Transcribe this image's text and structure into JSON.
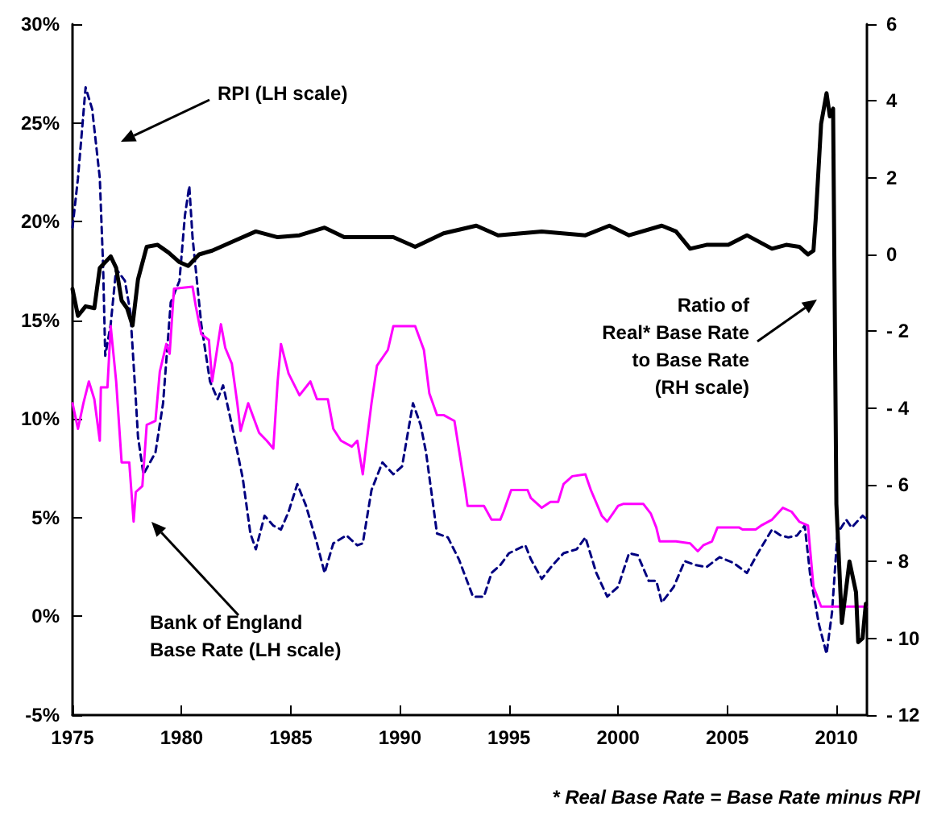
{
  "chart_data": {
    "type": "line",
    "xlim": [
      1975,
      2011.4
    ],
    "xticks": [
      1975,
      1980,
      1985,
      1990,
      1995,
      2000,
      2005,
      2010
    ],
    "ylim": [
      -5,
      30
    ],
    "yticks": [
      {
        "value": -5,
        "label": "-5%"
      },
      {
        "value": 0,
        "label": "0%"
      },
      {
        "value": 5,
        "label": "5%"
      },
      {
        "value": 10,
        "label": "10%"
      },
      {
        "value": 15,
        "label": "15%"
      },
      {
        "value": 20,
        "label": "20%"
      },
      {
        "value": 25,
        "label": "25%"
      },
      {
        "value": 30,
        "label": "30%"
      }
    ],
    "y2lim": [
      -12,
      6
    ],
    "y2ticks": [
      {
        "value": -12,
        "label": "- 12"
      },
      {
        "value": -10,
        "label": "- 10"
      },
      {
        "value": -8,
        "label": "- 8"
      },
      {
        "value": -6,
        "label": "- 6"
      },
      {
        "value": -4,
        "label": "- 4"
      },
      {
        "value": -2,
        "label": "- 2"
      },
      0,
      2,
      4,
      6
    ],
    "grid": false,
    "marker": "none",
    "series": [
      {
        "color": "#000080",
        "line_style": "dashed",
        "x": [
          1975.0,
          1975.25,
          1975.6,
          1975.9,
          1976.25,
          1976.4,
          1976.5,
          1976.75,
          1977.0,
          1977.4,
          1977.65,
          1977.9,
          1978.0,
          1978.25,
          1978.8,
          1979.15,
          1979.5,
          1979.9,
          1980.15,
          1980.35,
          1980.5,
          1980.9,
          1981.3,
          1981.65,
          1981.9,
          1982.3,
          1982.8,
          1983.15,
          1983.4,
          1983.8,
          1984.2,
          1984.55,
          1984.9,
          1985.3,
          1985.7,
          1986.2,
          1986.55,
          1986.95,
          1987.55,
          1988.05,
          1988.3,
          1988.7,
          1989.2,
          1989.7,
          1990.1,
          1990.6,
          1990.95,
          1991.2,
          1991.7,
          1992.2,
          1992.7,
          1993.35,
          1993.85,
          1994.2,
          1994.6,
          1995.0,
          1995.75,
          1996.0,
          1996.5,
          1997.0,
          1997.5,
          1998.1,
          1998.5,
          1999.0,
          1999.5,
          2000.0,
          2000.5,
          2000.9,
          2001.4,
          2001.75,
          2002.0,
          2002.55,
          2003.05,
          2003.55,
          2004.05,
          2004.65,
          2005.3,
          2005.9,
          2006.4,
          2007.05,
          2007.45,
          2007.8,
          2008.2,
          2008.55,
          2008.8,
          2009.2,
          2009.55,
          2009.8,
          2010.05,
          2010.45,
          2010.7,
          2011.2,
          2011.4
        ],
        "values": [
          19.7,
          22.2,
          26.8,
          25.7,
          22.2,
          17.8,
          13.2,
          14.8,
          17.6,
          17.0,
          15.4,
          11.0,
          9.1,
          7.2,
          8.3,
          10.8,
          15.9,
          17.0,
          20.3,
          21.8,
          19.2,
          14.8,
          11.9,
          11.0,
          11.7,
          9.7,
          7.0,
          4.2,
          3.4,
          5.1,
          4.6,
          4.4,
          5.3,
          6.7,
          5.6,
          3.7,
          2.2,
          3.7,
          4.1,
          3.6,
          3.7,
          6.4,
          7.8,
          7.2,
          7.6,
          10.8,
          9.7,
          8.3,
          4.2,
          4.0,
          2.9,
          1.0,
          1.0,
          2.2,
          2.6,
          3.2,
          3.6,
          2.9,
          1.9,
          2.6,
          3.2,
          3.4,
          4.0,
          2.2,
          1.0,
          1.5,
          3.2,
          3.1,
          1.8,
          1.8,
          0.7,
          1.5,
          2.8,
          2.6,
          2.5,
          3.0,
          2.7,
          2.2,
          3.2,
          4.4,
          4.1,
          4.0,
          4.1,
          4.6,
          2.1,
          -0.4,
          -1.9,
          0.2,
          4.2,
          4.9,
          4.5,
          5.1,
          4.9
        ]
      },
      {
        "color": "#ff00ff",
        "line_style": "solid",
        "x": [
          1975.0,
          1975.25,
          1975.5,
          1975.75,
          1976.0,
          1976.25,
          1976.3,
          1976.6,
          1976.75,
          1977.0,
          1977.25,
          1977.6,
          1977.8,
          1977.9,
          1978.2,
          1978.4,
          1978.8,
          1979.0,
          1979.3,
          1979.45,
          1979.65,
          1980.5,
          1980.65,
          1980.9,
          1981.25,
          1981.4,
          1981.8,
          1982.0,
          1982.3,
          1982.55,
          1982.7,
          1983.05,
          1983.55,
          1983.9,
          1984.2,
          1984.4,
          1984.55,
          1984.9,
          1985.4,
          1985.9,
          1986.2,
          1986.7,
          1986.95,
          1987.3,
          1987.8,
          1988.05,
          1988.3,
          1988.45,
          1988.7,
          1988.95,
          1989.45,
          1989.7,
          1990.7,
          1991.1,
          1991.35,
          1991.7,
          1992.0,
          1992.5,
          1993.0,
          1993.1,
          1993.85,
          1994.2,
          1994.6,
          1994.75,
          1995.1,
          1995.85,
          1996.0,
          1996.5,
          1996.9,
          1997.25,
          1997.5,
          1997.9,
          1998.5,
          1998.75,
          1999.25,
          1999.5,
          2000.0,
          2000.25,
          2001.15,
          2001.5,
          2001.75,
          2001.9,
          2002.65,
          2003.3,
          2003.65,
          2003.9,
          2004.3,
          2004.55,
          2005.55,
          2005.7,
          2006.3,
          2006.55,
          2007.05,
          2007.55,
          2007.95,
          2008.3,
          2008.7,
          2008.95,
          2009.3,
          2011.4
        ],
        "values": [
          10.8,
          9.5,
          10.8,
          11.9,
          11.0,
          8.9,
          11.6,
          11.6,
          14.7,
          11.9,
          7.8,
          7.8,
          4.8,
          6.3,
          6.6,
          9.7,
          9.9,
          12.4,
          13.8,
          13.3,
          16.6,
          16.7,
          15.7,
          14.3,
          14.0,
          11.9,
          14.8,
          13.6,
          12.8,
          10.8,
          9.4,
          10.8,
          9.3,
          8.9,
          8.5,
          11.9,
          13.8,
          12.3,
          11.2,
          11.9,
          11.0,
          11.0,
          9.5,
          8.9,
          8.6,
          8.9,
          7.2,
          8.6,
          10.8,
          12.7,
          13.5,
          14.7,
          14.7,
          13.5,
          11.3,
          10.2,
          10.2,
          9.9,
          6.4,
          5.6,
          5.6,
          4.9,
          4.9,
          5.3,
          6.4,
          6.4,
          6.0,
          5.5,
          5.8,
          5.8,
          6.7,
          7.1,
          7.2,
          6.4,
          5.1,
          4.8,
          5.6,
          5.7,
          5.7,
          5.2,
          4.5,
          3.8,
          3.8,
          3.7,
          3.3,
          3.6,
          3.8,
          4.5,
          4.5,
          4.4,
          4.4,
          4.6,
          4.9,
          5.5,
          5.3,
          4.8,
          4.6,
          1.5,
          0.5,
          0.5
        ]
      },
      {
        "color": "#000000",
        "line_style": "solid",
        "axis": "y2",
        "x": [
          1975.0,
          1975.25,
          1975.6,
          1976.0,
          1976.25,
          1976.75,
          1977.0,
          1977.25,
          1977.5,
          1977.75,
          1978.0,
          1978.4,
          1978.9,
          1979.4,
          1979.9,
          1980.3,
          1980.8,
          1981.4,
          1982.4,
          1983.4,
          1984.4,
          1985.4,
          1986.55,
          1987.45,
          1988.45,
          1989.7,
          1990.7,
          1992.0,
          1993.5,
          1994.5,
          1996.5,
          1998.5,
          1999.6,
          2000.5,
          2002.0,
          2002.65,
          2003.3,
          2004.05,
          2005.05,
          2005.9,
          2007.05,
          2007.7,
          2008.3,
          2008.7,
          2008.95,
          2009.05,
          2009.3,
          2009.55,
          2009.7,
          2009.85,
          2010.0,
          2010.25,
          2010.6,
          2010.9,
          2011.0,
          2011.2,
          2011.35
        ],
        "values": [
          -0.9,
          -1.6,
          -1.35,
          -1.4,
          -0.35,
          -0.05,
          -0.35,
          -1.2,
          -1.4,
          -1.85,
          -0.65,
          0.2,
          0.25,
          0.05,
          -0.2,
          -0.3,
          0.0,
          0.1,
          0.35,
          0.6,
          0.45,
          0.5,
          0.7,
          0.45,
          0.45,
          0.45,
          0.2,
          0.55,
          0.75,
          0.5,
          0.6,
          0.5,
          0.75,
          0.5,
          0.75,
          0.6,
          0.15,
          0.25,
          0.25,
          0.5,
          0.15,
          0.25,
          0.2,
          0.0,
          0.1,
          0.9,
          3.4,
          4.2,
          3.6,
          3.8,
          -6.5,
          -9.6,
          -8.0,
          -8.8,
          -10.1,
          -10.0,
          -9.1
        ]
      }
    ],
    "annotations": [
      "RPI (LH scale)",
      "Bank of England\nBase Rate (LH scale)",
      "Ratio of\nReal* Base Rate\nto Base Rate\n(RH scale)",
      "* Real Base Rate = Base Rate minus RPI"
    ]
  }
}
